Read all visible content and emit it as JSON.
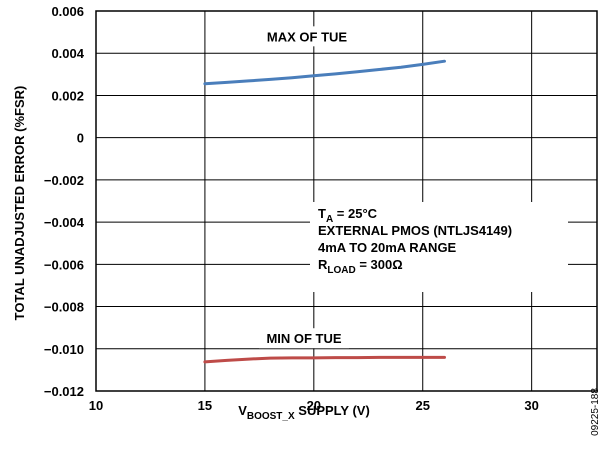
{
  "chart_data": {
    "type": "line",
    "xlabel": {
      "pre": "V",
      "sub": "BOOST_X",
      "post": " SUPPLY (V)"
    },
    "ylabel": "TOTAL UNADJUSTED ERROR (%FSR)",
    "xlim": [
      10,
      33
    ],
    "ylim": [
      -0.012,
      0.006
    ],
    "xticks": [
      10,
      15,
      20,
      25,
      30
    ],
    "xtick_labels": [
      "10",
      "15",
      "20",
      "25",
      "30"
    ],
    "yticks": [
      0.006,
      0.004,
      0.002,
      0,
      -0.002,
      -0.004,
      -0.006,
      -0.008,
      -0.01,
      -0.012
    ],
    "ytick_labels": [
      "0.006",
      "0.004",
      "0.002",
      "0",
      "−0.002",
      "−0.004",
      "−0.006",
      "−0.008",
      "−0.010",
      "−0.012"
    ],
    "grid": true,
    "series": [
      {
        "name": "MAX OF TUE",
        "color": "#4a7ebb",
        "x": [
          15,
          16,
          17,
          18,
          19,
          20,
          21,
          22,
          23,
          24,
          25,
          26
        ],
        "y": [
          0.00255,
          0.00262,
          0.00269,
          0.00276,
          0.00284,
          0.00293,
          0.00302,
          0.00312,
          0.00323,
          0.00334,
          0.00347,
          0.00362
        ]
      },
      {
        "name": "MIN OF TUE",
        "color": "#be4b48",
        "x": [
          15,
          16,
          17,
          18,
          19,
          20,
          21,
          22,
          23,
          24,
          25,
          26
        ],
        "y": [
          -0.01062,
          -0.01055,
          -0.01049,
          -0.01044,
          -0.01043,
          -0.01043,
          -0.01042,
          -0.01042,
          -0.01041,
          -0.01041,
          -0.01041,
          -0.01041
        ]
      }
    ],
    "annotation": [
      {
        "pre": "T",
        "sub": "A",
        "post": " = 25°C"
      },
      {
        "pre": "EXTERNAL PMOS (NTLJS4149)",
        "sub": "",
        "post": ""
      },
      {
        "pre": "4mA TO 20mA RANGE",
        "sub": "",
        "post": ""
      },
      {
        "pre": "R",
        "sub": "LOAD",
        "post": " = 300Ω"
      }
    ],
    "figure_id": "09225-188"
  }
}
